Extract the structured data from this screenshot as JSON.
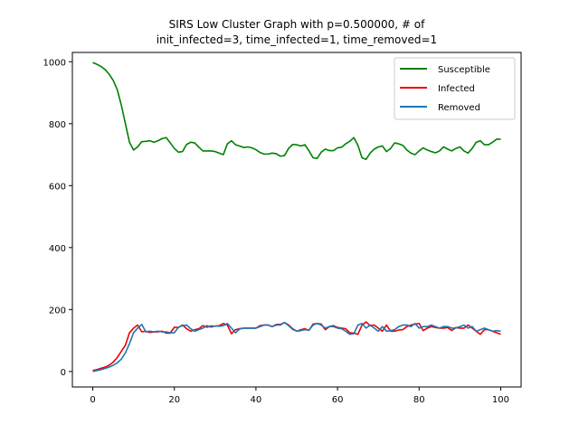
{
  "chart_data": {
    "type": "line",
    "title_line1": "SIRS Low Cluster Graph with p=0.500000, # of",
    "title_line2": "init_infected=3, time_infected=1, time_removed=1",
    "xlabel": "",
    "ylabel": "",
    "xlim": [
      -5,
      105
    ],
    "ylim": [
      -50,
      1030
    ],
    "xticks": [
      0,
      20,
      40,
      60,
      80,
      100
    ],
    "xtick_labels": [
      "0",
      "20",
      "40",
      "60",
      "80",
      "100"
    ],
    "yticks": [
      0,
      200,
      400,
      600,
      800,
      1000
    ],
    "ytick_labels": [
      "0",
      "200",
      "400",
      "600",
      "800",
      "1000"
    ],
    "grid": false,
    "legend_position": "top-right",
    "series": [
      {
        "name": "Susceptible",
        "color": "#008000",
        "x": [
          0,
          1,
          2,
          3,
          4,
          5,
          6,
          7,
          8,
          9,
          10,
          11,
          12,
          13,
          14,
          15,
          16,
          17,
          18,
          19,
          20,
          21,
          22,
          23,
          24,
          25,
          26,
          27,
          28,
          29,
          30,
          31,
          32,
          33,
          34,
          35,
          36,
          37,
          38,
          39,
          40,
          41,
          42,
          43,
          44,
          45,
          46,
          47,
          48,
          49,
          50,
          51,
          52,
          53,
          54,
          55,
          56,
          57,
          58,
          59,
          60,
          61,
          62,
          63,
          64,
          65,
          66,
          67,
          68,
          69,
          70,
          71,
          72,
          73,
          74,
          75,
          76,
          77,
          78,
          79,
          80,
          81,
          82,
          83,
          84,
          85,
          86,
          87,
          88,
          89,
          90,
          91,
          92,
          93,
          94,
          95,
          96,
          97,
          98,
          99,
          100
        ],
        "values": [
          997,
          992,
          985,
          975,
          960,
          940,
          910,
          860,
          800,
          740,
          715,
          725,
          742,
          743,
          745,
          740,
          745,
          752,
          755,
          738,
          720,
          708,
          710,
          733,
          740,
          738,
          724,
          712,
          712,
          712,
          710,
          705,
          700,
          735,
          745,
          732,
          728,
          723,
          725,
          722,
          716,
          707,
          702,
          702,
          705,
          703,
          695,
          697,
          720,
          733,
          732,
          728,
          732,
          712,
          690,
          688,
          708,
          718,
          713,
          713,
          722,
          724,
          735,
          743,
          755,
          730,
          690,
          685,
          705,
          718,
          725,
          728,
          710,
          720,
          738,
          735,
          730,
          715,
          705,
          700,
          712,
          722,
          715,
          710,
          706,
          712,
          725,
          718,
          712,
          720,
          725,
          712,
          705,
          720,
          740,
          745,
          732,
          732,
          740,
          750,
          750
        ]
      },
      {
        "name": "Infected",
        "color": "#ee0000",
        "x": [
          0,
          1,
          2,
          3,
          4,
          5,
          6,
          7,
          8,
          9,
          10,
          11,
          12,
          13,
          14,
          15,
          16,
          17,
          18,
          19,
          20,
          21,
          22,
          23,
          24,
          25,
          26,
          27,
          28,
          29,
          30,
          31,
          32,
          33,
          34,
          35,
          36,
          37,
          38,
          39,
          40,
          41,
          42,
          43,
          44,
          45,
          46,
          47,
          48,
          49,
          50,
          51,
          52,
          53,
          54,
          55,
          56,
          57,
          58,
          59,
          60,
          61,
          62,
          63,
          64,
          65,
          66,
          67,
          68,
          69,
          70,
          71,
          72,
          73,
          74,
          75,
          76,
          77,
          78,
          79,
          80,
          81,
          82,
          83,
          84,
          85,
          86,
          87,
          88,
          89,
          90,
          91,
          92,
          93,
          94,
          95,
          96,
          97,
          98,
          99,
          100
        ],
        "values": [
          3,
          6,
          10,
          14,
          20,
          30,
          45,
          65,
          85,
          125,
          140,
          150,
          128,
          130,
          126,
          128,
          128,
          130,
          124,
          124,
          143,
          142,
          150,
          138,
          130,
          135,
          138,
          148,
          143,
          147,
          146,
          148,
          155,
          150,
          122,
          135,
          138,
          140,
          140,
          140,
          140,
          148,
          150,
          150,
          145,
          152,
          152,
          158,
          150,
          138,
          130,
          135,
          138,
          133,
          153,
          155,
          153,
          135,
          145,
          148,
          142,
          140,
          138,
          125,
          124,
          120,
          150,
          160,
          148,
          150,
          140,
          130,
          150,
          130,
          130,
          134,
          135,
          145,
          150,
          153,
          155,
          132,
          140,
          145,
          142,
          140,
          140,
          142,
          132,
          142,
          140,
          140,
          150,
          140,
          130,
          120,
          135,
          135,
          130,
          125,
          120
        ]
      },
      {
        "name": "Removed",
        "color": "#1f77b4",
        "x": [
          0,
          1,
          2,
          3,
          4,
          5,
          6,
          7,
          8,
          9,
          10,
          11,
          12,
          13,
          14,
          15,
          16,
          17,
          18,
          19,
          20,
          21,
          22,
          23,
          24,
          25,
          26,
          27,
          28,
          29,
          30,
          31,
          32,
          33,
          34,
          35,
          36,
          37,
          38,
          39,
          40,
          41,
          42,
          43,
          44,
          45,
          46,
          47,
          48,
          49,
          50,
          51,
          52,
          53,
          54,
          55,
          56,
          57,
          58,
          59,
          60,
          61,
          62,
          63,
          64,
          65,
          66,
          67,
          68,
          69,
          70,
          71,
          72,
          73,
          74,
          75,
          76,
          77,
          78,
          79,
          80,
          81,
          82,
          83,
          84,
          85,
          86,
          87,
          88,
          89,
          90,
          91,
          92,
          93,
          94,
          95,
          96,
          97,
          98,
          99,
          100
        ],
        "values": [
          0,
          3,
          6,
          10,
          14,
          20,
          28,
          40,
          60,
          90,
          125,
          140,
          152,
          128,
          130,
          128,
          130,
          128,
          128,
          125,
          125,
          143,
          148,
          150,
          138,
          130,
          135,
          140,
          148,
          143,
          147,
          146,
          148,
          155,
          140,
          125,
          137,
          140,
          140,
          140,
          140,
          145,
          150,
          150,
          145,
          150,
          150,
          158,
          148,
          136,
          130,
          132,
          135,
          133,
          150,
          155,
          150,
          140,
          145,
          145,
          140,
          138,
          130,
          120,
          122,
          150,
          155,
          140,
          150,
          140,
          130,
          145,
          130,
          132,
          135,
          145,
          150,
          150,
          145,
          155,
          140,
          145,
          145,
          150,
          145,
          140,
          145,
          145,
          140,
          140,
          145,
          150,
          140,
          145,
          130,
          135,
          140,
          135,
          130,
          132,
          130
        ]
      }
    ]
  }
}
